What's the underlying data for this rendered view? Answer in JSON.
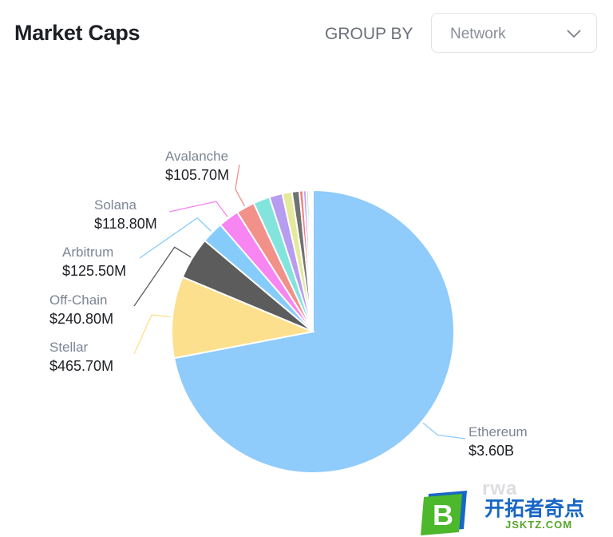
{
  "header": {
    "title": "Market Caps",
    "group_by_label": "GROUP BY",
    "group_by_selected": "Network"
  },
  "chart_data": {
    "type": "pie",
    "title": "Market Caps",
    "unit": "USD",
    "slices": [
      {
        "name": "Ethereum",
        "value_label": "$3.60B",
        "value": 3600000000,
        "color": "#8fcbfb",
        "labeled": true
      },
      {
        "name": "Stellar",
        "value_label": "$465.70M",
        "value": 465700000,
        "color": "#fde08d",
        "labeled": true
      },
      {
        "name": "Off-Chain",
        "value_label": "$240.80M",
        "value": 240800000,
        "color": "#5c5c5c",
        "labeled": true
      },
      {
        "name": "Arbitrum",
        "value_label": "$125.50M",
        "value": 125500000,
        "color": "#86ccfb",
        "labeled": true
      },
      {
        "name": "Solana",
        "value_label": "$118.80M",
        "value": 118800000,
        "color": "#f785f2",
        "labeled": true
      },
      {
        "name": "Avalanche",
        "value_label": "$105.70M",
        "value": 105700000,
        "color": "#f2908a",
        "labeled": true
      },
      {
        "name": "",
        "value_label": "",
        "value": 95000000,
        "color": "#83e4de",
        "labeled": false
      },
      {
        "name": "",
        "value_label": "",
        "value": 75000000,
        "color": "#b79cf0",
        "labeled": false
      },
      {
        "name": "",
        "value_label": "",
        "value": 55000000,
        "color": "#e4e99c",
        "labeled": false
      },
      {
        "name": "",
        "value_label": "",
        "value": 42000000,
        "color": "#727272",
        "labeled": false
      },
      {
        "name": "",
        "value_label": "",
        "value": 22000000,
        "color": "#f08080",
        "labeled": false
      },
      {
        "name": "",
        "value_label": "",
        "value": 18000000,
        "color": "#c89ef2",
        "labeled": false
      },
      {
        "name": "",
        "value_label": "",
        "value": 13000000,
        "color": "#90e0b0",
        "labeled": false
      },
      {
        "name": "",
        "value_label": "",
        "value": 10000000,
        "color": "#f5b86a",
        "labeled": false
      },
      {
        "name": "",
        "value_label": "",
        "value": 8000000,
        "color": "#9ab8f0",
        "labeled": false
      },
      {
        "name": "",
        "value_label": "",
        "value": 6000000,
        "color": "#b0b0b0",
        "labeled": false
      }
    ]
  },
  "watermark": "rwa",
  "badge": {
    "letter": "B",
    "title": "开拓者奇点",
    "subtitle": "JSKTZ.COM"
  }
}
